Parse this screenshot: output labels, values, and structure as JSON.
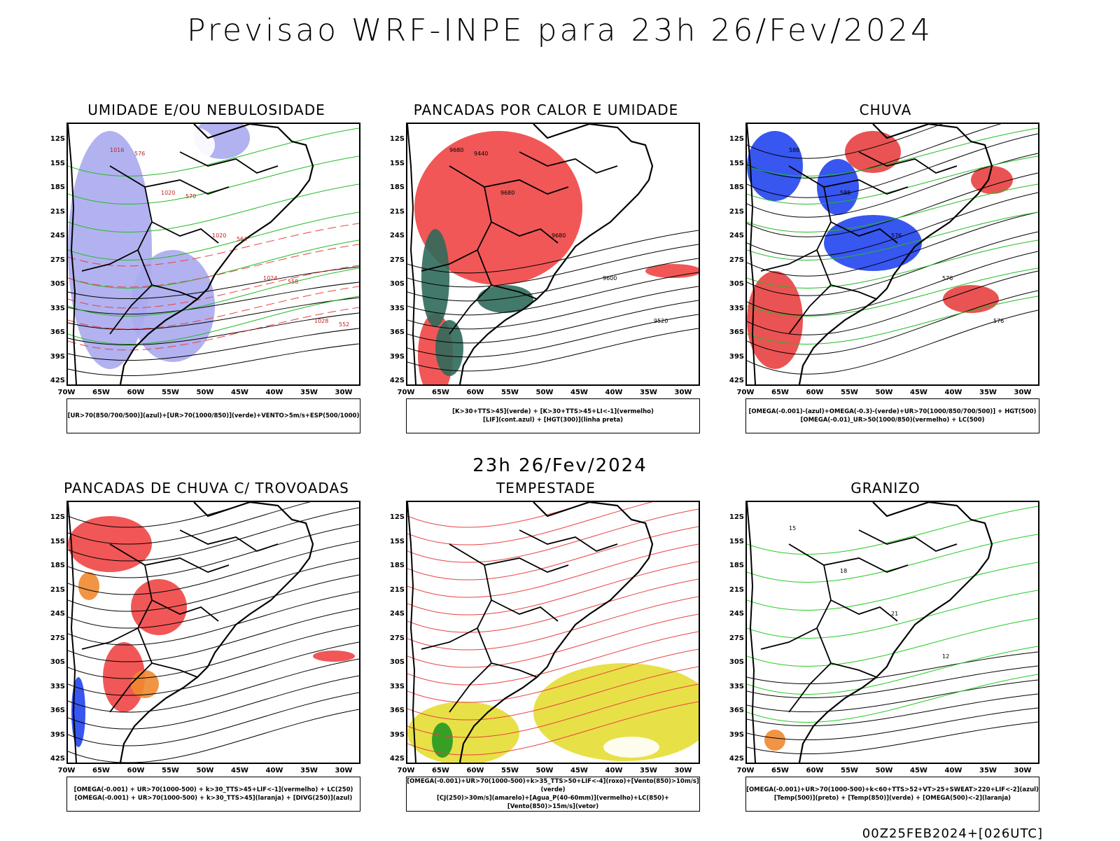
{
  "title": "Previsao WRF-INPE  para 23h 26/Fev/2024",
  "subtitle": "23h 26/Fev/2024",
  "footer": "00Z25FEB2024+[026UTC]",
  "lat_labels": [
    "12S",
    "15S",
    "18S",
    "21S",
    "24S",
    "27S",
    "30S",
    "33S",
    "36S",
    "39S",
    "42S"
  ],
  "lon_labels": [
    "70W",
    "65W",
    "60W",
    "55W",
    "50W",
    "45W",
    "40W",
    "35W",
    "30W"
  ],
  "panels": [
    {
      "id": "umidade",
      "title": "UMIDADE E/OU NEBULOSIDADE",
      "legend": [
        "[UR>70(850/700/500)](azul)+[UR>70(1000/850)](verde)+VENTO>5m/s+ESP(500/1000)"
      ],
      "contour_labels": [
        "1016",
        "1020",
        "1020",
        "1024",
        "1028",
        "576",
        "570",
        "564",
        "558",
        "552"
      ]
    },
    {
      "id": "pancadas-calor",
      "title": "PANCADAS POR CALOR E UMIDADE",
      "legend": [
        "[K>30+TTS>45](verde) + [K>30+TTS>45+LI<-1](vermelho)",
        "[LIF](cont.azul) + [HGT(300)](linha preta)"
      ],
      "contour_labels": [
        "9680",
        "9680",
        "9680",
        "9600",
        "9520",
        "9440"
      ]
    },
    {
      "id": "chuva",
      "title": "CHUVA",
      "legend": [
        "[OMEGA(-0.001)-(azul)+OMEGA(-0.3)-(verde)+UR>70(1000/850/700/500)] + HGT(500)",
        "[OMEGA(-0.01)_UR>50(1000/850)(vermelho) + LC(500)"
      ],
      "contour_labels": [
        "588",
        "588",
        "576",
        "576",
        "576"
      ]
    },
    {
      "id": "pancadas-trovoadas",
      "title": "PANCADAS DE CHUVA C/ TROVOADAS",
      "legend": [
        "[OMEGA(-0.001) + UR>70(1000-500) + k>30_TTS>45+LIF<-1](vermelho) + LC(250)",
        "[OMEGA(-0.001) + UR>70(1000-500) + k>30_TTS>45](laranja) + [DIVG(250)](azul)"
      ],
      "contour_labels": []
    },
    {
      "id": "tempestade",
      "title": "TEMPESTADE",
      "legend": [
        "[OMEGA(-0.001)+UR>70(1000-500)+k>35_TTS>50+LIF<-4](roxo)+[Vento(850)>10m/s](verde)",
        "[CJ(250)>30m/s](amarelo)+[Agua_P(40-60mm)](vermelho)+LC(850)+[Vento(850)>15m/s](vetor)"
      ],
      "contour_labels": []
    },
    {
      "id": "granizo",
      "title": "GRANIZO",
      "legend": [
        "[OMEGA(-0.001)+UR>70(1000-500)+k<60+TTS>52+VT>25+SWEAT>220+LIF<-2](azul)",
        "[Temp(500)](preto) + [Temp(850)](verde) + [OMEGA(500)<-2](laranja)"
      ],
      "contour_labels": [
        "15",
        "18",
        "21",
        "12"
      ]
    }
  ]
}
